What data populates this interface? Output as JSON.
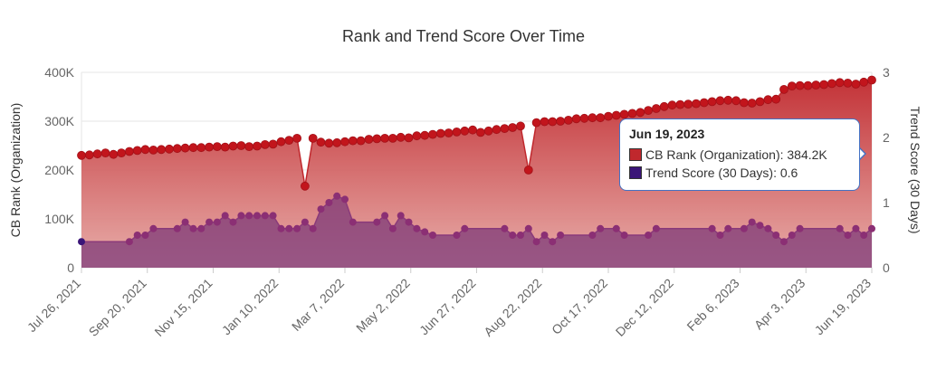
{
  "chart_data": {
    "type": "area",
    "title": "Rank and Trend Score Over Time",
    "ylabel_left": "CB Rank (Organization)",
    "ylabel_right": "Trend Score (30 Days)",
    "ylim_left": [
      0,
      400000
    ],
    "ylim_right": [
      0,
      3
    ],
    "y_ticks_left": [
      "0",
      "100K",
      "200K",
      "300K",
      "400K"
    ],
    "y_ticks_right": [
      "0",
      "1",
      "2",
      "3"
    ],
    "x_range": [
      "2021-07-26",
      "2023-06-19"
    ],
    "x_ticks": [
      "Jul 26, 2021",
      "Sep 20, 2021",
      "Nov 15, 2021",
      "Jan 10, 2022",
      "Mar 7, 2022",
      "May 2, 2022",
      "Jun 27, 2022",
      "Aug 22, 2022",
      "Oct 17, 2022",
      "Dec 12, 2022",
      "Feb 6, 2023",
      "Apr 3, 2023",
      "Jun 19, 2023"
    ],
    "grid": true,
    "series": [
      {
        "name": "CB Rank (Organization)",
        "color": "#c0282d",
        "axis": "left",
        "points": [
          [
            "2021-07-26",
            230000
          ],
          [
            "2021-08-02",
            231000
          ],
          [
            "2021-08-09",
            233000
          ],
          [
            "2021-08-16",
            235000
          ],
          [
            "2021-08-23",
            232000
          ],
          [
            "2021-08-30",
            235000
          ],
          [
            "2021-09-06",
            238000
          ],
          [
            "2021-09-13",
            240000
          ],
          [
            "2021-09-20",
            242000
          ],
          [
            "2021-09-27",
            241000
          ],
          [
            "2021-10-04",
            242000
          ],
          [
            "2021-10-11",
            243000
          ],
          [
            "2021-10-18",
            244000
          ],
          [
            "2021-10-25",
            245000
          ],
          [
            "2021-11-01",
            246000
          ],
          [
            "2021-11-08",
            246000
          ],
          [
            "2021-11-15",
            247000
          ],
          [
            "2021-11-22",
            248000
          ],
          [
            "2021-11-29",
            247000
          ],
          [
            "2021-12-06",
            249000
          ],
          [
            "2021-12-13",
            250000
          ],
          [
            "2021-12-20",
            248000
          ],
          [
            "2021-12-27",
            249000
          ],
          [
            "2022-01-03",
            252000
          ],
          [
            "2022-01-10",
            253000
          ],
          [
            "2022-01-17",
            258000
          ],
          [
            "2022-01-24",
            261000
          ],
          [
            "2022-01-31",
            265000
          ],
          [
            "2022-02-07",
            167000
          ],
          [
            "2022-02-14",
            265000
          ],
          [
            "2022-02-21",
            257000
          ],
          [
            "2022-02-28",
            255000
          ],
          [
            "2022-03-07",
            256000
          ],
          [
            "2022-03-14",
            258000
          ],
          [
            "2022-03-21",
            260000
          ],
          [
            "2022-03-28",
            260000
          ],
          [
            "2022-04-04",
            263000
          ],
          [
            "2022-04-11",
            264000
          ],
          [
            "2022-04-18",
            265000
          ],
          [
            "2022-04-25",
            265000
          ],
          [
            "2022-05-02",
            267000
          ],
          [
            "2022-05-09",
            266000
          ],
          [
            "2022-05-16",
            270000
          ],
          [
            "2022-05-23",
            271000
          ],
          [
            "2022-05-30",
            273000
          ],
          [
            "2022-06-06",
            275000
          ],
          [
            "2022-06-13",
            276000
          ],
          [
            "2022-06-20",
            278000
          ],
          [
            "2022-06-27",
            280000
          ],
          [
            "2022-07-04",
            282000
          ],
          [
            "2022-07-11",
            277000
          ],
          [
            "2022-07-18",
            280000
          ],
          [
            "2022-07-25",
            283000
          ],
          [
            "2022-08-01",
            285000
          ],
          [
            "2022-08-08",
            287000
          ],
          [
            "2022-08-15",
            290000
          ],
          [
            "2022-08-22",
            200000
          ],
          [
            "2022-08-29",
            297000
          ],
          [
            "2022-09-05",
            299000
          ],
          [
            "2022-09-12",
            299000
          ],
          [
            "2022-09-19",
            300000
          ],
          [
            "2022-09-26",
            302000
          ],
          [
            "2022-10-03",
            305000
          ],
          [
            "2022-10-10",
            306000
          ],
          [
            "2022-10-17",
            307000
          ],
          [
            "2022-10-24",
            307000
          ],
          [
            "2022-10-31",
            310000
          ],
          [
            "2022-11-07",
            312000
          ],
          [
            "2022-11-14",
            314000
          ],
          [
            "2022-11-21",
            316000
          ],
          [
            "2022-11-28",
            318000
          ],
          [
            "2022-12-05",
            322000
          ],
          [
            "2022-12-12",
            326000
          ],
          [
            "2022-12-19",
            330000
          ],
          [
            "2022-12-26",
            333000
          ],
          [
            "2023-01-02",
            334000
          ],
          [
            "2023-01-09",
            335000
          ],
          [
            "2023-01-16",
            336000
          ],
          [
            "2023-01-23",
            338000
          ],
          [
            "2023-01-30",
            340000
          ],
          [
            "2023-02-06",
            342000
          ],
          [
            "2023-02-13",
            343000
          ],
          [
            "2023-02-20",
            342000
          ],
          [
            "2023-02-27",
            338000
          ],
          [
            "2023-03-06",
            337000
          ],
          [
            "2023-03-13",
            340000
          ],
          [
            "2023-03-20",
            344000
          ],
          [
            "2023-03-27",
            345000
          ],
          [
            "2023-04-03",
            365000
          ],
          [
            "2023-04-10",
            372000
          ],
          [
            "2023-04-17",
            373000
          ],
          [
            "2023-04-24",
            373000
          ],
          [
            "2023-05-01",
            374000
          ],
          [
            "2023-05-08",
            375000
          ],
          [
            "2023-05-15",
            377000
          ],
          [
            "2023-05-22",
            379000
          ],
          [
            "2023-05-29",
            378000
          ],
          [
            "2023-06-05",
            376000
          ],
          [
            "2023-06-12",
            380000
          ],
          [
            "2023-06-19",
            384200
          ]
        ]
      },
      {
        "name": "Trend Score (30 Days)",
        "color": "#3b1578",
        "axis": "right",
        "points": [
          [
            "2021-07-26",
            0.4
          ],
          [
            "2021-09-06",
            0.4
          ],
          [
            "2021-09-13",
            0.5
          ],
          [
            "2021-09-20",
            0.5
          ],
          [
            "2021-09-27",
            0.6
          ],
          [
            "2021-10-18",
            0.6
          ],
          [
            "2021-10-25",
            0.7
          ],
          [
            "2021-11-01",
            0.6
          ],
          [
            "2021-11-08",
            0.6
          ],
          [
            "2021-11-15",
            0.7
          ],
          [
            "2021-11-22",
            0.7
          ],
          [
            "2021-11-29",
            0.8
          ],
          [
            "2021-12-06",
            0.7
          ],
          [
            "2021-12-13",
            0.8
          ],
          [
            "2021-12-20",
            0.8
          ],
          [
            "2021-12-27",
            0.8
          ],
          [
            "2022-01-03",
            0.8
          ],
          [
            "2022-01-10",
            0.8
          ],
          [
            "2022-01-17",
            0.6
          ],
          [
            "2022-01-24",
            0.6
          ],
          [
            "2022-01-31",
            0.6
          ],
          [
            "2022-02-07",
            0.7
          ],
          [
            "2022-02-14",
            0.6
          ],
          [
            "2022-02-21",
            0.9
          ],
          [
            "2022-02-28",
            1.0
          ],
          [
            "2022-03-07",
            1.1
          ],
          [
            "2022-03-14",
            1.05
          ],
          [
            "2022-03-21",
            0.7
          ],
          [
            "2022-04-11",
            0.7
          ],
          [
            "2022-04-18",
            0.8
          ],
          [
            "2022-04-25",
            0.6
          ],
          [
            "2022-05-02",
            0.8
          ],
          [
            "2022-05-09",
            0.7
          ],
          [
            "2022-05-16",
            0.6
          ],
          [
            "2022-05-23",
            0.55
          ],
          [
            "2022-05-30",
            0.5
          ],
          [
            "2022-06-20",
            0.5
          ],
          [
            "2022-06-27",
            0.6
          ],
          [
            "2022-08-01",
            0.6
          ],
          [
            "2022-08-08",
            0.5
          ],
          [
            "2022-08-15",
            0.5
          ],
          [
            "2022-08-22",
            0.6
          ],
          [
            "2022-08-29",
            0.4
          ],
          [
            "2022-09-05",
            0.5
          ],
          [
            "2022-09-12",
            0.4
          ],
          [
            "2022-09-19",
            0.5
          ],
          [
            "2022-10-17",
            0.5
          ],
          [
            "2022-10-24",
            0.6
          ],
          [
            "2022-11-07",
            0.6
          ],
          [
            "2022-11-14",
            0.5
          ],
          [
            "2022-12-05",
            0.5
          ],
          [
            "2022-12-12",
            0.6
          ],
          [
            "2023-01-30",
            0.6
          ],
          [
            "2023-02-06",
            0.5
          ],
          [
            "2023-02-13",
            0.6
          ],
          [
            "2023-02-27",
            0.6
          ],
          [
            "2023-03-06",
            0.7
          ],
          [
            "2023-03-13",
            0.65
          ],
          [
            "2023-03-20",
            0.6
          ],
          [
            "2023-03-27",
            0.5
          ],
          [
            "2023-04-03",
            0.4
          ],
          [
            "2023-04-10",
            0.5
          ],
          [
            "2023-04-17",
            0.6
          ],
          [
            "2023-05-22",
            0.6
          ],
          [
            "2023-05-29",
            0.5
          ],
          [
            "2023-06-05",
            0.6
          ],
          [
            "2023-06-12",
            0.5
          ],
          [
            "2023-06-19",
            0.6
          ]
        ]
      }
    ],
    "tooltip": {
      "title": "Jun 19, 2023",
      "rows": [
        "CB Rank (Organization): 384.2K",
        "Trend Score (30 Days): 0.6"
      ]
    }
  }
}
